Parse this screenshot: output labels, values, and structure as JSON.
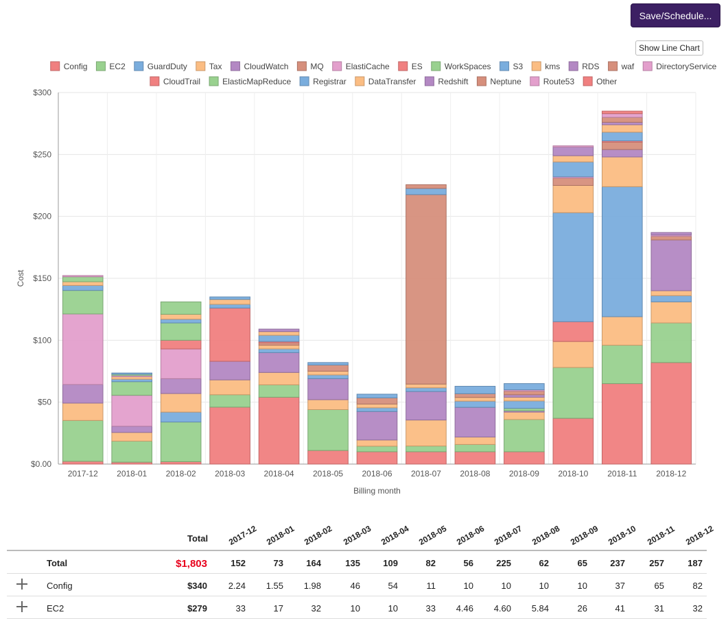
{
  "toolbar": {
    "save_label": "Save/Schedule...",
    "line_chart_label": "Show Line Chart"
  },
  "colors": {
    "Config": "#f08080",
    "EC2": "#99d18f",
    "GuardDuty": "#7aaddd",
    "Tax": "#fbbd83",
    "CloudWatch": "#b388c3",
    "MQ": "#d68f7c",
    "ElastiCache": "#e39fcc",
    "ES": "#f08080",
    "WorkSpaces": "#99d18f",
    "S3": "#7aaddd",
    "kms": "#fbbd83",
    "RDS": "#b388c3",
    "waf": "#d68f7c",
    "DirectoryService": "#e39fcc",
    "CloudTrail": "#f08080",
    "ElasticMapReduce": "#99d18f",
    "Registrar": "#7aaddd",
    "DataTransfer": "#fbbd83",
    "Redshift": "#b388c3",
    "Neptune": "#d68f7c",
    "Route53": "#e39fcc",
    "Other": "#f08080"
  },
  "chart_data": {
    "type": "bar",
    "stacked": true,
    "xlabel": "Billing month",
    "ylabel": "Cost",
    "ylim": [
      0,
      300
    ],
    "yticks": [
      "$0.00",
      "$50",
      "$100",
      "$150",
      "$200",
      "$250",
      "$300"
    ],
    "legend_position": "top",
    "categories": [
      "2017-12",
      "2018-01",
      "2018-02",
      "2018-03",
      "2018-04",
      "2018-05",
      "2018-06",
      "2018-07",
      "2018-08",
      "2018-09",
      "2018-10",
      "2018-11",
      "2018-12"
    ],
    "series": [
      {
        "name": "Config",
        "values": [
          2.24,
          1.55,
          1.98,
          46,
          54,
          11,
          10,
          10,
          10,
          10,
          37,
          65,
          82
        ]
      },
      {
        "name": "EC2",
        "values": [
          33,
          17,
          32,
          10,
          10,
          33,
          4.46,
          4.6,
          5.84,
          26,
          41,
          31,
          32
        ]
      },
      {
        "name": "GuardDuty",
        "values": [
          0,
          0,
          8,
          0,
          0,
          0,
          0,
          0,
          0,
          0,
          0,
          0,
          0
        ]
      },
      {
        "name": "Tax",
        "values": [
          14,
          7,
          15,
          12,
          10,
          8,
          5,
          21,
          6,
          6,
          21,
          23,
          17
        ]
      },
      {
        "name": "CloudWatch",
        "values": [
          15,
          5,
          12,
          15,
          16,
          17,
          23,
          23,
          24,
          1,
          0,
          0,
          0
        ]
      },
      {
        "name": "MQ",
        "values": [
          0,
          0,
          0,
          0,
          0,
          0,
          0,
          0,
          0,
          0,
          0,
          0,
          0
        ]
      },
      {
        "name": "ElastiCache",
        "values": [
          57,
          25,
          24,
          0,
          0,
          0,
          0,
          0,
          0,
          0,
          0,
          0,
          0
        ]
      },
      {
        "name": "ES",
        "values": [
          0,
          0,
          7,
          43,
          0,
          0,
          0,
          0,
          0,
          0,
          16,
          0,
          0
        ]
      },
      {
        "name": "WorkSpaces",
        "values": [
          19,
          11,
          14,
          0,
          0,
          0,
          0,
          0,
          0,
          2,
          0,
          0,
          0
        ]
      },
      {
        "name": "S3",
        "values": [
          4,
          2,
          3,
          3,
          3,
          3,
          3,
          3,
          5,
          6,
          88,
          105,
          5
        ]
      },
      {
        "name": "kms",
        "values": [
          3,
          2,
          4,
          4,
          3,
          3,
          3,
          3,
          3,
          3,
          22,
          24,
          4
        ]
      },
      {
        "name": "RDS",
        "values": [
          0,
          0,
          0,
          0,
          0,
          0,
          0,
          0,
          0,
          2,
          0,
          6,
          41
        ]
      },
      {
        "name": "waf",
        "values": [
          0,
          0,
          0,
          0,
          2,
          5,
          5,
          153,
          3,
          3,
          6,
          6,
          3
        ]
      },
      {
        "name": "DirectoryService",
        "values": [
          0,
          1,
          0,
          0,
          0,
          0,
          0,
          0,
          0,
          1,
          1,
          0,
          1
        ]
      },
      {
        "name": "CloudTrail",
        "values": [
          0,
          0,
          0,
          0,
          1,
          0,
          0,
          0,
          0,
          0,
          0,
          1,
          0
        ]
      },
      {
        "name": "ElasticMapReduce",
        "values": [
          4,
          1,
          10,
          0,
          0,
          0,
          0,
          0,
          0,
          0,
          0,
          0,
          0
        ]
      },
      {
        "name": "Registrar",
        "values": [
          0,
          1,
          0,
          2,
          5,
          2,
          3,
          5,
          6,
          5,
          12,
          7,
          0
        ]
      },
      {
        "name": "DataTransfer",
        "values": [
          0,
          0,
          0,
          0,
          3,
          0,
          0,
          0,
          0,
          0,
          5,
          6,
          0
        ]
      },
      {
        "name": "Redshift",
        "values": [
          0,
          0,
          0,
          0,
          2,
          0,
          0,
          0,
          0,
          0,
          7,
          2,
          2
        ]
      },
      {
        "name": "Neptune",
        "values": [
          0,
          0,
          0,
          0,
          0,
          0,
          0,
          3,
          0,
          0,
          0,
          4,
          0
        ]
      },
      {
        "name": "Route53",
        "values": [
          1,
          0,
          0,
          0,
          0,
          0,
          0,
          0,
          0,
          0,
          1,
          3,
          0
        ]
      },
      {
        "name": "Other",
        "values": [
          0,
          0,
          0,
          0,
          0,
          0,
          0,
          0,
          0,
          0,
          0,
          2,
          0
        ]
      }
    ]
  },
  "table": {
    "total_header": "Total",
    "months": [
      "2017-12",
      "2018-01",
      "2018-02",
      "2018-03",
      "2018-04",
      "2018-05",
      "2018-06",
      "2018-07",
      "2018-08",
      "2018-09",
      "2018-10",
      "2018-11",
      "2018-12"
    ],
    "rows": [
      {
        "name": "Total",
        "total": "$1,803",
        "values": [
          "152",
          "73",
          "164",
          "135",
          "109",
          "82",
          "56",
          "225",
          "62",
          "65",
          "237",
          "257",
          "187"
        ],
        "expandable": false,
        "bold": true,
        "total_color": "#e8001c"
      },
      {
        "name": "Config",
        "total": "$340",
        "values": [
          "2.24",
          "1.55",
          "1.98",
          "46",
          "54",
          "11",
          "10",
          "10",
          "10",
          "10",
          "37",
          "65",
          "82"
        ],
        "expandable": true,
        "bold": false,
        "total_color": "#222"
      },
      {
        "name": "EC2",
        "total": "$279",
        "values": [
          "33",
          "17",
          "32",
          "10",
          "10",
          "33",
          "4.46",
          "4.60",
          "5.84",
          "26",
          "41",
          "31",
          "32"
        ],
        "expandable": true,
        "bold": false,
        "total_color": "#222"
      }
    ]
  }
}
